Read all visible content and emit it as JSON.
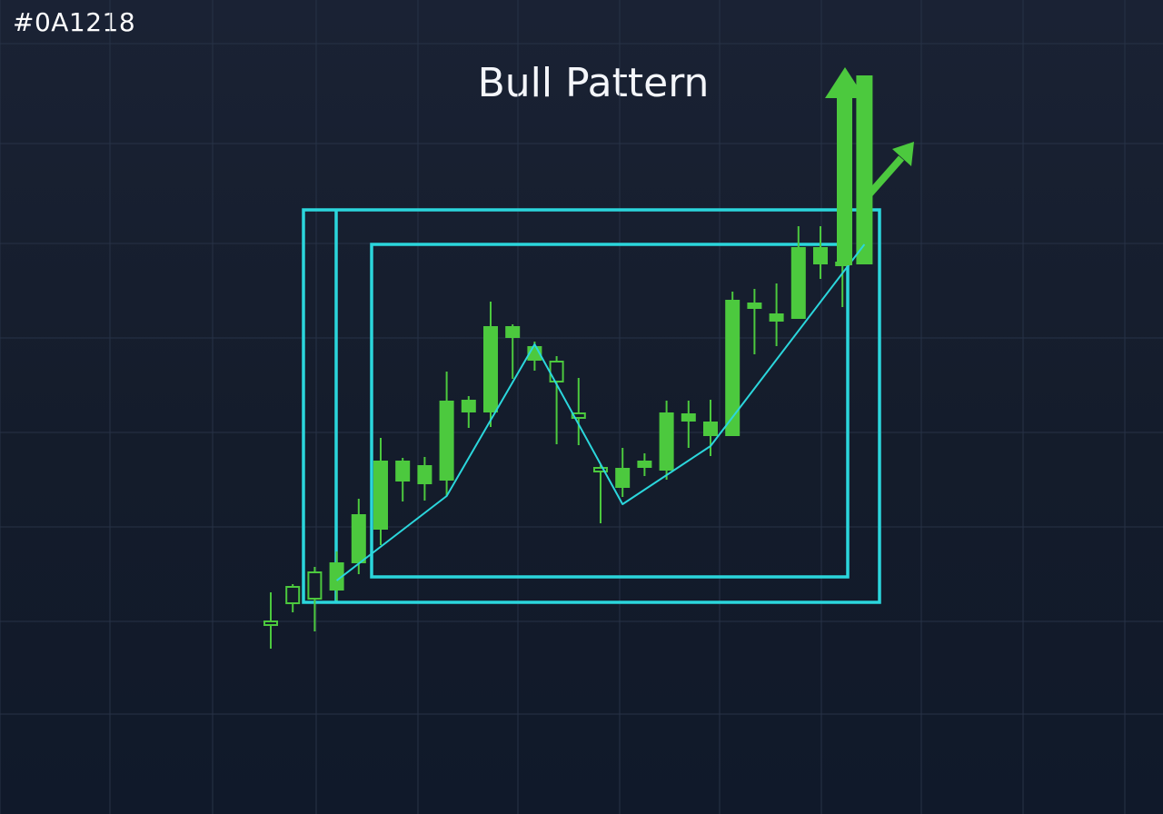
{
  "header": {
    "corner_label": "#0A1218",
    "title": "Bull Pattern"
  },
  "colors": {
    "background": "#141c2b",
    "grid": "#273246",
    "bull": "#4cc93e",
    "frame": "#2bd6dc",
    "zigzag": "#2bd6dc",
    "text": "#ffffff"
  },
  "chart_data": {
    "type": "candlestick",
    "title": "Bull Pattern",
    "xlabel": "",
    "ylabel": "",
    "grid": true,
    "candles": [
      {
        "open": 212,
        "close": 212,
        "high": 244,
        "low": 182,
        "filled": false
      },
      {
        "open": 232,
        "close": 250,
        "high": 253,
        "low": 222,
        "filled": false
      },
      {
        "open": 237,
        "close": 266,
        "high": 272,
        "low": 201,
        "filled": false
      },
      {
        "open": 246,
        "close": 277,
        "high": 289,
        "low": 235,
        "filled": true
      },
      {
        "open": 276,
        "close": 330,
        "high": 347,
        "low": 264,
        "filled": true
      },
      {
        "open": 313,
        "close": 389,
        "high": 414,
        "low": 296,
        "filled": true
      },
      {
        "open": 366,
        "close": 389,
        "high": 392,
        "low": 344,
        "filled": true
      },
      {
        "open": 363,
        "close": 384,
        "high": 393,
        "low": 345,
        "filled": true
      },
      {
        "open": 367,
        "close": 455,
        "high": 487,
        "low": 350,
        "filled": true
      },
      {
        "open": 442,
        "close": 456,
        "high": 460,
        "low": 425,
        "filled": true
      },
      {
        "open": 442,
        "close": 537,
        "high": 564,
        "low": 426,
        "filled": true
      },
      {
        "open": 524,
        "close": 537,
        "high": 539,
        "low": 479,
        "filled": true
      },
      {
        "open": 515,
        "close": 499,
        "high": 520,
        "low": 488,
        "filled": true
      },
      {
        "open": 498,
        "close": 476,
        "high": 504,
        "low": 407,
        "filled": false
      },
      {
        "open": 436,
        "close": 441,
        "high": 480,
        "low": 406,
        "filled": false
      },
      {
        "open": 377,
        "close": 381,
        "high": 384,
        "low": 320,
        "filled": false
      },
      {
        "open": 359,
        "close": 381,
        "high": 403,
        "low": 349,
        "filled": true
      },
      {
        "open": 381,
        "close": 389,
        "high": 397,
        "low": 372,
        "filled": true
      },
      {
        "open": 378,
        "close": 442,
        "high": 455,
        "low": 368,
        "filled": true
      },
      {
        "open": 432,
        "close": 441,
        "high": 455,
        "low": 403,
        "filled": true
      },
      {
        "open": 416,
        "close": 432,
        "high": 456,
        "low": 394,
        "filled": true
      },
      {
        "open": 416,
        "close": 566,
        "high": 575,
        "low": 416,
        "filled": true
      },
      {
        "open": 556,
        "close": 563,
        "high": 578,
        "low": 506,
        "filled": true
      },
      {
        "open": 542,
        "close": 551,
        "high": 584,
        "low": 515,
        "filled": true
      },
      {
        "open": 545,
        "close": 624,
        "high": 647,
        "low": 545,
        "filled": true
      },
      {
        "open": 605,
        "close": 624,
        "high": 647,
        "low": 589,
        "filled": true
      },
      {
        "open": 603,
        "close": 608,
        "high": 635,
        "low": 558,
        "filled": true
      }
    ],
    "zigzag": [
      {
        "i": 3,
        "v": 257
      },
      {
        "i": 8,
        "v": 350
      },
      {
        "i": 12,
        "v": 517
      },
      {
        "i": 16,
        "v": 341
      },
      {
        "i": 20,
        "v": 405
      },
      {
        "i": 27,
        "v": 627
      }
    ],
    "breakout_bar": {
      "i": 27,
      "open": 605,
      "close": 813
    },
    "frames": [
      "outer",
      "inner"
    ],
    "arrows": [
      "up",
      "up-right"
    ]
  }
}
